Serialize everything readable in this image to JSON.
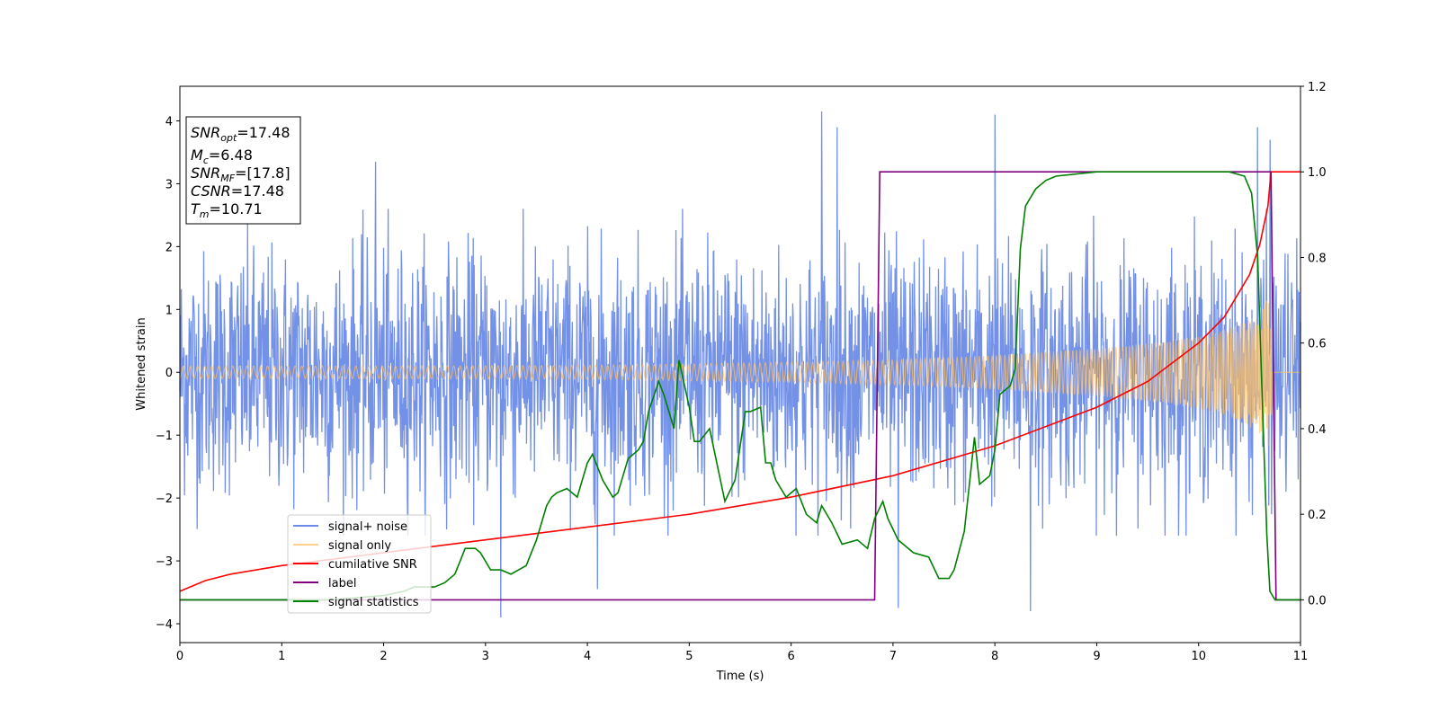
{
  "chart_data": {
    "type": "line",
    "xlabel": "Time (s)",
    "ylabel": "Whitened strain",
    "xlim": [
      0,
      11
    ],
    "ylim_left": [
      -4.3,
      4.55
    ],
    "ylim_right": [
      -0.1,
      1.2
    ],
    "xticks": [
      "0",
      "1",
      "2",
      "3",
      "4",
      "5",
      "6",
      "7",
      "8",
      "9",
      "10",
      "11"
    ],
    "yticks_left": [
      "−4",
      "−3",
      "−2",
      "−1",
      "0",
      "1",
      "2",
      "3",
      "4"
    ],
    "yticks_right": [
      "0.0",
      "0.2",
      "0.4",
      "0.6",
      "0.8",
      "1.0",
      "1.2"
    ],
    "legend_position": "lower-left",
    "annotation": {
      "lines": [
        {
          "var": "SNR",
          "sub": "opt",
          "value": "=17.48"
        },
        {
          "var": "M",
          "sub": "c",
          "value": "=6.48"
        },
        {
          "var": "SNR",
          "sub": "MF",
          "value": "=[17.8]"
        },
        {
          "var": "CSNR",
          "sub": "",
          "value": "=17.48"
        },
        {
          "var": "T",
          "sub": "m",
          "value": "=10.71"
        }
      ]
    },
    "series": [
      {
        "name": "signal+ noise",
        "axis": "left",
        "color": "#6b8be6",
        "kind": "noise",
        "noise_sigma": 0.95,
        "typical_range": [
          -2.6,
          2.6
        ],
        "peak_points": [
          [
            1.92,
            3.35
          ],
          [
            3.15,
            -3.9
          ],
          [
            4.1,
            -3.45
          ],
          [
            6.3,
            4.15
          ],
          [
            6.45,
            3.9
          ],
          [
            7.05,
            -3.75
          ],
          [
            8.0,
            4.1
          ],
          [
            8.35,
            -3.8
          ],
          [
            10.58,
            3.9
          ],
          [
            10.7,
            3.7
          ]
        ]
      },
      {
        "name": "signal only",
        "axis": "left",
        "color": "#ffc266",
        "kind": "chirp",
        "amplitude": [
          [
            0,
            0.1
          ],
          [
            2,
            0.1
          ],
          [
            4,
            0.11
          ],
          [
            6,
            0.16
          ],
          [
            7,
            0.2
          ],
          [
            8,
            0.27
          ],
          [
            9,
            0.38
          ],
          [
            9.5,
            0.46
          ],
          [
            10,
            0.58
          ],
          [
            10.3,
            0.7
          ],
          [
            10.5,
            0.86
          ],
          [
            10.65,
            1.1
          ],
          [
            10.71,
            1.3
          ],
          [
            10.73,
            0
          ]
        ]
      },
      {
        "name": "cumilative SNR",
        "axis": "right",
        "color": "#ff0000",
        "x": [
          0,
          0.25,
          0.5,
          1,
          2,
          3,
          4,
          5,
          6,
          7,
          8,
          9,
          9.5,
          10,
          10.25,
          10.5,
          10.6,
          10.68,
          10.71,
          10.75,
          11
        ],
        "y": [
          0.02,
          0.045,
          0.06,
          0.08,
          0.11,
          0.14,
          0.17,
          0.2,
          0.24,
          0.29,
          0.36,
          0.45,
          0.51,
          0.6,
          0.66,
          0.76,
          0.83,
          0.92,
          1.0,
          1.0,
          1.0
        ]
      },
      {
        "name": "label",
        "axis": "right",
        "color": "#800080",
        "x": [
          0,
          6.82,
          6.87,
          10.71,
          10.76,
          11
        ],
        "y": [
          0,
          0,
          1,
          1,
          0,
          0
        ]
      },
      {
        "name": "signal statistics",
        "axis": "right",
        "color": "#008000",
        "x": [
          0,
          0.5,
          1,
          1.5,
          2.0,
          2.2,
          2.3,
          2.5,
          2.6,
          2.7,
          2.8,
          2.9,
          2.95,
          3.05,
          3.15,
          3.25,
          3.4,
          3.5,
          3.6,
          3.65,
          3.7,
          3.8,
          3.9,
          4.0,
          4.05,
          4.15,
          4.25,
          4.3,
          4.4,
          4.5,
          4.55,
          4.6,
          4.7,
          4.75,
          4.85,
          4.9,
          5.0,
          5.05,
          5.1,
          5.2,
          5.35,
          5.45,
          5.55,
          5.6,
          5.7,
          5.75,
          5.8,
          5.85,
          5.95,
          6.05,
          6.15,
          6.25,
          6.3,
          6.4,
          6.5,
          6.65,
          6.75,
          6.82,
          6.9,
          6.95,
          7.05,
          7.2,
          7.35,
          7.45,
          7.55,
          7.6,
          7.7,
          7.8,
          7.85,
          7.95,
          8.0,
          8.05,
          8.15,
          8.2,
          8.25,
          8.3,
          8.4,
          8.5,
          8.6,
          8.8,
          9.0,
          9.5,
          10.0,
          10.3,
          10.45,
          10.52,
          10.58,
          10.62,
          10.67,
          10.7,
          10.75,
          10.85,
          11
        ],
        "y": [
          0,
          0,
          0,
          0,
          0.01,
          0.02,
          0.03,
          0.03,
          0.04,
          0.06,
          0.12,
          0.12,
          0.11,
          0.07,
          0.07,
          0.06,
          0.08,
          0.14,
          0.22,
          0.24,
          0.25,
          0.26,
          0.24,
          0.32,
          0.34,
          0.28,
          0.24,
          0.25,
          0.33,
          0.35,
          0.37,
          0.44,
          0.51,
          0.48,
          0.4,
          0.56,
          0.45,
          0.37,
          0.37,
          0.4,
          0.23,
          0.28,
          0.44,
          0.44,
          0.45,
          0.32,
          0.32,
          0.28,
          0.24,
          0.26,
          0.2,
          0.18,
          0.22,
          0.18,
          0.13,
          0.14,
          0.12,
          0.19,
          0.23,
          0.19,
          0.14,
          0.11,
          0.1,
          0.05,
          0.05,
          0.07,
          0.16,
          0.38,
          0.27,
          0.29,
          0.35,
          0.48,
          0.5,
          0.54,
          0.82,
          0.92,
          0.96,
          0.98,
          0.99,
          0.995,
          1.0,
          1.0,
          1.0,
          1.0,
          0.99,
          0.95,
          0.8,
          0.5,
          0.15,
          0.02,
          0.0,
          0.0,
          0.0
        ]
      }
    ]
  }
}
